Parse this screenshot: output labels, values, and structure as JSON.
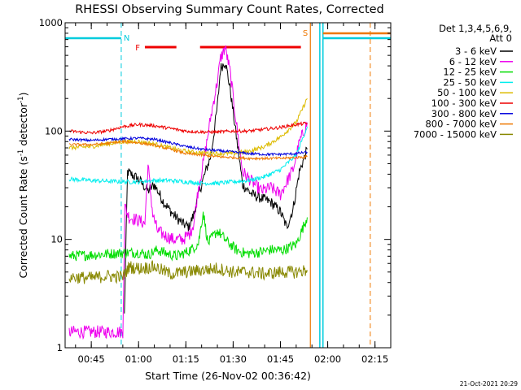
{
  "chart_data": {
    "type": "line",
    "title": "RHESSI Observing Summary Count Rates, Corrected",
    "xlabel": "Start Time (26-Nov-02 00:36:42)",
    "ylabel": "Corrected Count Rate (s⁻¹ detector⁻¹)",
    "ylabel_main": "Corrected Count Rate (s",
    "ylabel_sup1": "-1",
    "ylabel_mid": " detector",
    "ylabel_sup2": "-1",
    "ylabel_end": ")",
    "y_scale": "log",
    "ylim": [
      1,
      1000
    ],
    "xlim": [
      "00:36:42",
      "02:20:00"
    ],
    "x_ticks": [
      "00:45",
      "01:00",
      "01:15",
      "01:30",
      "01:45",
      "02:00",
      "02:15"
    ],
    "y_ticks": [
      "1",
      "10",
      "100",
      "1000"
    ],
    "legend_header": [
      "Det 1,3,4,5,6,9,",
      "Att 0"
    ],
    "legend_position": "right",
    "datestamp": "21-Oct-2021 20:29",
    "flags": [
      {
        "label": "N",
        "color": "#00ccdd"
      },
      {
        "label": "F",
        "color": "#ee0000"
      },
      {
        "label": "S",
        "color": "#ee7700"
      }
    ],
    "series": [
      {
        "name": "3 - 6 keV",
        "color": "#000000",
        "x": [
          "00:55:30",
          "00:56:30",
          "01:00:00",
          "01:03:00",
          "01:05:00",
          "01:08:00",
          "01:11:00",
          "01:14:00",
          "01:16:00",
          "01:17:30",
          "01:19:00",
          "01:21:00",
          "01:23:00",
          "01:25:00",
          "01:26:00",
          "01:27:30",
          "01:29:00",
          "01:31:00",
          "01:33:00",
          "01:36:00",
          "01:39:00",
          "01:42:00",
          "01:45:00",
          "01:47:00",
          "01:49:00",
          "01:51:00",
          "01:53:30"
        ],
        "y": [
          2.0,
          42,
          36,
          28,
          32,
          22,
          17,
          14,
          13,
          17,
          26,
          40,
          60,
          170,
          380,
          440,
          250,
          90,
          32,
          26,
          24,
          22,
          18,
          13,
          19,
          42,
          68
        ]
      },
      {
        "name": "6 - 12 keV",
        "color": "#ee00ee",
        "x": [
          "00:38:00",
          "00:55:00",
          "00:55:40",
          "00:57:00",
          "01:00:00",
          "01:02:00",
          "01:03:00",
          "01:04:30",
          "01:06:00",
          "01:08:00",
          "01:11:00",
          "01:14:00",
          "01:16:00",
          "01:17:30",
          "01:19:00",
          "01:21:00",
          "01:23:00",
          "01:25:00",
          "01:26:00",
          "01:27:30",
          "01:29:00",
          "01:31:00",
          "01:33:00",
          "01:36:00",
          "01:39:00",
          "01:42:00",
          "01:45:00",
          "01:47:00",
          "01:49:00",
          "01:51:00",
          "01:53:30"
        ],
        "y": [
          1.4,
          1.4,
          20,
          16,
          15,
          14,
          48,
          17,
          12,
          11,
          10,
          10,
          11,
          14,
          30,
          60,
          140,
          290,
          470,
          590,
          360,
          120,
          42,
          34,
          28,
          30,
          26,
          34,
          44,
          78,
          120
        ]
      },
      {
        "name": "12 - 25 keV",
        "color": "#00dd00",
        "x": [
          "00:38:00",
          "00:45:00",
          "00:55:00",
          "01:00:00",
          "01:03:00",
          "01:06:00",
          "01:09:00",
          "01:12:00",
          "01:15:00",
          "01:17:00",
          "01:19:00",
          "01:20:30",
          "01:22:00",
          "01:25:00",
          "01:28:00",
          "01:31:00",
          "01:34:00",
          "01:38:00",
          "01:42:00",
          "01:46:00",
          "01:50:00",
          "01:53:30"
        ],
        "y": [
          7.0,
          7.2,
          7.5,
          7.6,
          7.2,
          8.0,
          7.4,
          7.0,
          7.6,
          8.2,
          9.2,
          18,
          9.2,
          12,
          9.6,
          8.0,
          7.4,
          7.6,
          8.0,
          8.0,
          9.0,
          16
        ]
      },
      {
        "name": "25 - 50 keV",
        "color": "#00eeee",
        "x": [
          "00:38:00",
          "00:45:00",
          "00:55:00",
          "01:00:00",
          "01:05:00",
          "01:10:00",
          "01:15:00",
          "01:20:00",
          "01:25:00",
          "01:30:00",
          "01:35:00",
          "01:40:00",
          "01:45:00",
          "01:50:00",
          "01:53:30"
        ],
        "y": [
          36,
          35,
          34,
          34,
          35,
          35,
          34,
          33,
          33,
          34,
          35,
          38,
          44,
          60,
          110
        ]
      },
      {
        "name": "50 - 100 keV",
        "color": "#ddbb00",
        "x": [
          "00:38:00",
          "00:45:00",
          "00:50:00",
          "00:55:00",
          "01:00:00",
          "01:05:00",
          "01:10:00",
          "01:15:00",
          "01:20:00",
          "01:25:00",
          "01:30:00",
          "01:35:00",
          "01:40:00",
          "01:45:00",
          "01:50:00",
          "01:53:30"
        ],
        "y": [
          70,
          72,
          76,
          80,
          80,
          76,
          70,
          65,
          63,
          62,
          62,
          65,
          72,
          88,
          120,
          200
        ]
      },
      {
        "name": "100 - 300 keV",
        "color": "#ee0000",
        "x": [
          "00:38:00",
          "00:45:00",
          "00:50:00",
          "00:55:00",
          "01:00:00",
          "01:05:00",
          "01:10:00",
          "01:15:00",
          "01:20:00",
          "01:25:00",
          "01:30:00",
          "01:35:00",
          "01:40:00",
          "01:45:00",
          "01:50:00",
          "01:53:30"
        ],
        "y": [
          100,
          96,
          100,
          110,
          115,
          112,
          106,
          100,
          98,
          98,
          100,
          100,
          104,
          108,
          115,
          118
        ]
      },
      {
        "name": "300 - 800 keV",
        "color": "#0000dd",
        "x": [
          "00:38:00",
          "00:45:00",
          "00:50:00",
          "00:55:00",
          "01:00:00",
          "01:05:00",
          "01:10:00",
          "01:15:00",
          "01:20:00",
          "01:25:00",
          "01:30:00",
          "01:35:00",
          "01:40:00",
          "01:45:00",
          "01:50:00",
          "01:53:30"
        ],
        "y": [
          84,
          82,
          84,
          85,
          86,
          84,
          78,
          72,
          68,
          66,
          64,
          62,
          61,
          61,
          62,
          64
        ]
      },
      {
        "name": "800 - 7000 keV",
        "color": "#ee7700",
        "x": [
          "00:38:00",
          "00:45:00",
          "00:50:00",
          "00:55:00",
          "01:00:00",
          "01:05:00",
          "01:10:00",
          "01:15:00",
          "01:20:00",
          "01:25:00",
          "01:30:00",
          "01:35:00",
          "01:40:00",
          "01:45:00",
          "01:50:00",
          "01:53:30"
        ],
        "y": [
          75,
          75,
          77,
          80,
          78,
          74,
          68,
          62,
          60,
          58,
          57,
          56,
          56,
          56,
          57,
          58
        ]
      },
      {
        "name": "7000 - 15000 keV",
        "color": "#888800",
        "x": [
          "00:38:00",
          "00:45:00",
          "00:50:00",
          "00:55:00",
          "00:57:00",
          "01:00:00",
          "01:05:00",
          "01:10:00",
          "01:15:00",
          "01:20:00",
          "01:25:00",
          "01:30:00",
          "01:35:00",
          "01:40:00",
          "01:45:00",
          "01:50:00",
          "01:53:30"
        ],
        "y": [
          4.5,
          4.4,
          4.6,
          4.5,
          5.6,
          5.4,
          5.6,
          4.8,
          5.0,
          5.2,
          5.4,
          5.0,
          5.0,
          4.8,
          5.0,
          5.0,
          5.2
        ]
      }
    ]
  }
}
